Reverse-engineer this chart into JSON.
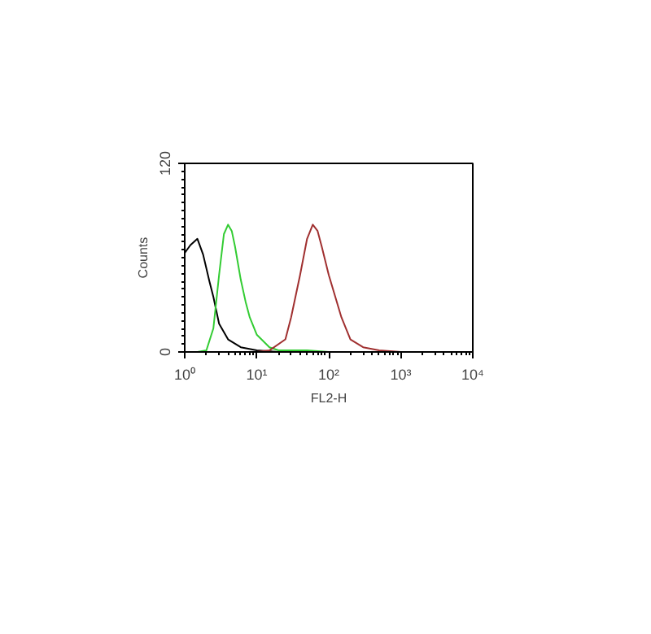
{
  "chart_data": {
    "type": "line",
    "xlabel": "FL2-H",
    "ylabel": "Counts",
    "log": "x",
    "grid": false,
    "marker": "none",
    "line_style": "solid",
    "xlim": [
      1,
      10000
    ],
    "ylim": [
      0,
      120
    ],
    "xticks": [
      {
        "value": 1,
        "label": "10⁰"
      },
      {
        "value": 10,
        "label": "10¹"
      },
      {
        "value": 100,
        "label": "10²"
      },
      {
        "value": 1000,
        "label": "10³"
      },
      {
        "value": 10000,
        "label": "10⁴"
      }
    ],
    "yticks": [
      0,
      120
    ],
    "series": [
      {
        "color": "#000000",
        "x": [
          1,
          1.2,
          1.5,
          1.8,
          2.2,
          2.5,
          3,
          4,
          6,
          10,
          20,
          50
        ],
        "values": [
          63,
          68,
          72,
          62,
          45,
          35,
          18,
          8,
          3,
          1,
          0,
          0
        ]
      },
      {
        "color": "#33cc33",
        "x": [
          1.5,
          2,
          2.5,
          3,
          3.5,
          4,
          4.5,
          5,
          6,
          7,
          8,
          10,
          15,
          20,
          50,
          100
        ],
        "values": [
          0,
          1,
          15,
          49,
          75,
          81,
          77,
          67,
          46,
          32,
          22,
          11,
          3,
          1,
          1,
          0
        ]
      },
      {
        "color": "#a03030",
        "x": [
          10,
          15,
          25,
          30,
          40,
          50,
          60,
          70,
          80,
          100,
          150,
          200,
          300,
          500,
          1000
        ],
        "values": [
          0,
          1,
          8,
          22,
          49,
          72,
          81,
          77,
          67,
          49,
          22,
          8,
          3,
          1,
          0
        ]
      }
    ]
  }
}
